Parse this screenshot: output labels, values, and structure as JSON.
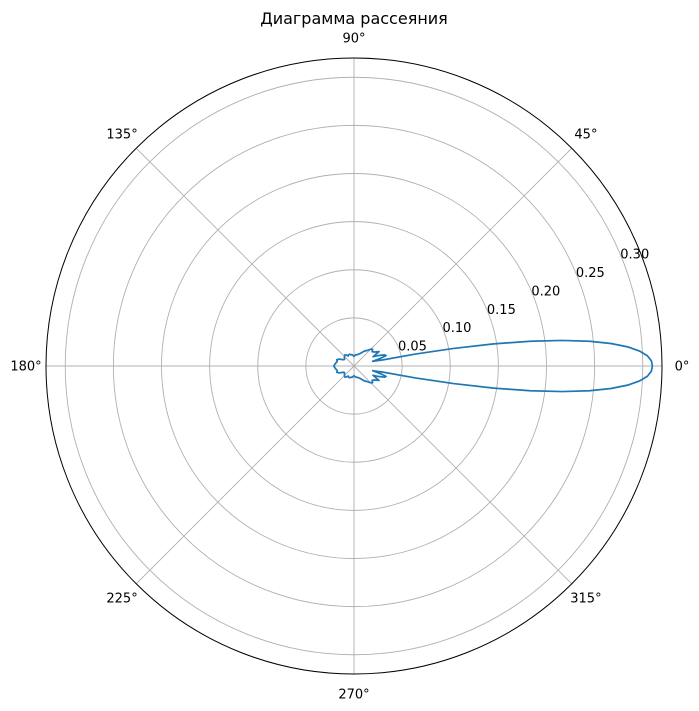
{
  "chart_data": {
    "type": "polar-line",
    "title": "Диаграмма рассеяния",
    "theta_unit": "degrees",
    "rmax": 0.32,
    "theta_ticks": [
      {
        "value": 0,
        "label": "0°"
      },
      {
        "value": 45,
        "label": "45°"
      },
      {
        "value": 90,
        "label": "90°"
      },
      {
        "value": 135,
        "label": "135°"
      },
      {
        "value": 180,
        "label": "180°"
      },
      {
        "value": 225,
        "label": "225°"
      },
      {
        "value": 270,
        "label": "270°"
      },
      {
        "value": 315,
        "label": "315°"
      }
    ],
    "r_ticks": [
      {
        "value": 0.05,
        "label": "0.05"
      },
      {
        "value": 0.1,
        "label": "0.10"
      },
      {
        "value": 0.15,
        "label": "0.15"
      },
      {
        "value": 0.2,
        "label": "0.20"
      },
      {
        "value": 0.25,
        "label": "0.25"
      },
      {
        "value": 0.3,
        "label": "0.30"
      }
    ],
    "r_label_angle": 22.5,
    "grid": true,
    "series": [
      {
        "color": "#1f77b4",
        "theta": [
          0,
          1,
          2,
          3,
          4,
          5,
          6,
          7,
          8,
          9,
          10,
          11,
          12,
          14,
          16,
          18,
          20,
          23,
          26,
          30,
          34,
          38,
          42,
          46,
          50,
          55,
          60,
          65,
          70,
          75,
          80,
          85,
          90,
          95,
          100,
          105,
          110,
          115,
          120,
          125,
          130,
          135,
          140,
          145,
          150,
          155,
          160,
          165,
          170,
          175,
          180,
          185,
          190,
          195,
          200,
          205,
          210,
          215,
          220,
          225,
          230,
          235,
          240,
          245,
          250,
          255,
          260,
          265,
          270,
          275,
          280,
          285,
          290,
          295,
          300,
          305,
          310,
          314,
          318,
          322,
          326,
          330,
          334,
          337,
          340,
          342,
          344,
          346,
          348,
          349,
          350,
          351,
          352,
          353,
          354,
          355,
          356,
          357,
          358,
          359,
          360
        ],
        "r": [
          0.31,
          0.309,
          0.305,
          0.297,
          0.285,
          0.268,
          0.246,
          0.218,
          0.185,
          0.147,
          0.105,
          0.065,
          0.03,
          0.02,
          0.028,
          0.035,
          0.034,
          0.028,
          0.022,
          0.03,
          0.026,
          0.024,
          0.026,
          0.024,
          0.021,
          0.019,
          0.016,
          0.014,
          0.013,
          0.012,
          0.012,
          0.011,
          0.01,
          0.011,
          0.012,
          0.012,
          0.013,
          0.013,
          0.012,
          0.014,
          0.015,
          0.014,
          0.013,
          0.012,
          0.013,
          0.017,
          0.019,
          0.018,
          0.019,
          0.02,
          0.021,
          0.02,
          0.019,
          0.018,
          0.019,
          0.017,
          0.013,
          0.012,
          0.013,
          0.014,
          0.015,
          0.014,
          0.012,
          0.013,
          0.013,
          0.012,
          0.012,
          0.011,
          0.01,
          0.011,
          0.012,
          0.012,
          0.013,
          0.014,
          0.016,
          0.019,
          0.021,
          0.024,
          0.026,
          0.024,
          0.026,
          0.03,
          0.022,
          0.028,
          0.034,
          0.035,
          0.028,
          0.02,
          0.03,
          0.065,
          0.105,
          0.147,
          0.185,
          0.218,
          0.246,
          0.268,
          0.285,
          0.297,
          0.305,
          0.309,
          0.31
        ]
      }
    ]
  }
}
